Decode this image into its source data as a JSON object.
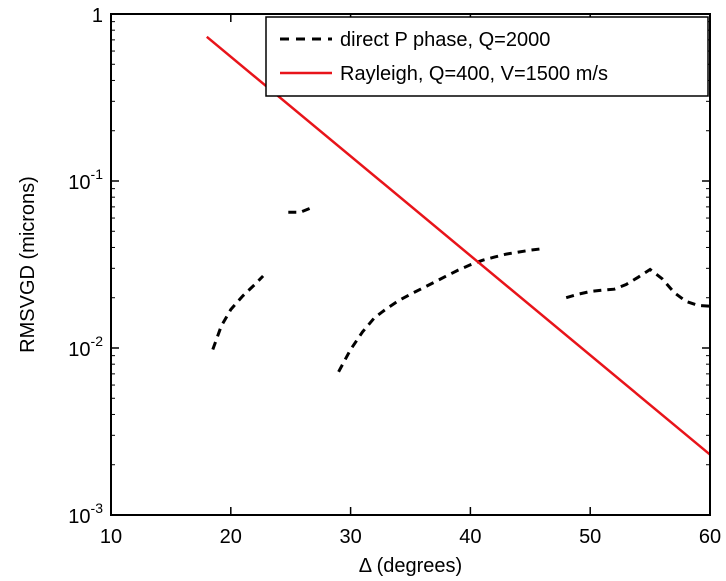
{
  "chart_data": {
    "type": "line",
    "xlabel": "Δ (degrees)",
    "ylabel": "RMSVGD (microns)",
    "xlim": [
      10,
      60
    ],
    "ylim": [
      0.001,
      1
    ],
    "yscale": "log",
    "grid": false,
    "legend_position": "top-right",
    "x_ticks": [
      10,
      20,
      30,
      40,
      50,
      60
    ],
    "x_tick_labels": [
      "10",
      "20",
      "30",
      "40",
      "50",
      "60"
    ],
    "y_ticks": [
      {
        "value": 1,
        "base": "1",
        "exp": ""
      },
      {
        "value": 0.1,
        "base": "10",
        "exp": "-1"
      },
      {
        "value": 0.01,
        "base": "10",
        "exp": "-2"
      },
      {
        "value": 0.001,
        "base": "10",
        "exp": "-3"
      }
    ],
    "series": [
      {
        "name": "direct P phase, Q=2000",
        "color": "#000000",
        "style": "dashed",
        "segments": [
          [
            [
              18.5,
              0.0098
            ],
            [
              19.2,
              0.0135
            ],
            [
              20.0,
              0.017
            ],
            [
              21.0,
              0.0205
            ],
            [
              22.0,
              0.024
            ],
            [
              22.7,
              0.027
            ]
          ],
          [
            [
              24.8,
              0.065
            ],
            [
              25.8,
              0.065
            ],
            [
              26.9,
              0.07
            ]
          ],
          [
            [
              29.0,
              0.0072
            ],
            [
              30.0,
              0.0098
            ],
            [
              31.0,
              0.0125
            ],
            [
              32.0,
              0.0152
            ],
            [
              33.0,
              0.0172
            ],
            [
              34.0,
              0.0192
            ],
            [
              35.0,
              0.021
            ],
            [
              36.0,
              0.0228
            ],
            [
              37.0,
              0.0248
            ],
            [
              38.0,
              0.027
            ],
            [
              39.0,
              0.0293
            ],
            [
              40.0,
              0.0315
            ],
            [
              41.0,
              0.0335
            ],
            [
              42.0,
              0.035
            ],
            [
              43.0,
              0.0365
            ],
            [
              44.0,
              0.0375
            ],
            [
              45.0,
              0.0385
            ],
            [
              46.0,
              0.0393
            ]
          ],
          [
            [
              48.0,
              0.02
            ],
            [
              49.0,
              0.021
            ],
            [
              50.0,
              0.0218
            ],
            [
              51.0,
              0.0222
            ],
            [
              52.0,
              0.0225
            ],
            [
              53.0,
              0.024
            ],
            [
              54.0,
              0.0265
            ],
            [
              55.0,
              0.0295
            ],
            [
              56.0,
              0.026
            ],
            [
              57.0,
              0.0215
            ],
            [
              58.0,
              0.019
            ],
            [
              59.0,
              0.018
            ],
            [
              60.0,
              0.0178
            ]
          ]
        ]
      },
      {
        "name": "Rayleigh, Q=400, V=1500 m/s",
        "color": "#e8141a",
        "style": "solid",
        "segments": [
          [
            [
              18.0,
              0.73
            ],
            [
              60.0,
              0.0023
            ]
          ]
        ]
      }
    ]
  }
}
